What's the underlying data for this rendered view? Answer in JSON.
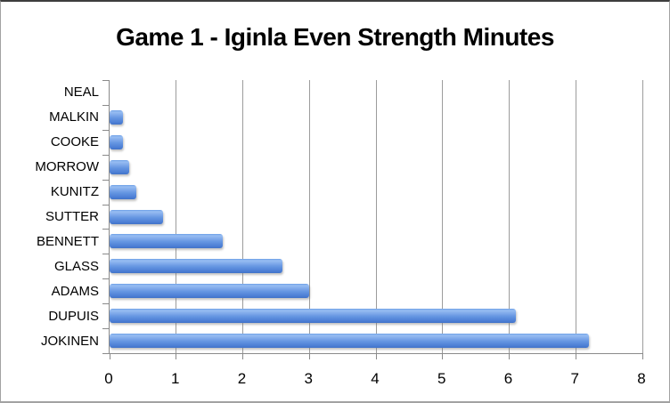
{
  "chart_data": {
    "type": "bar",
    "orientation": "horizontal",
    "title": "Game 1 - Iginla Even Strength Minutes",
    "categories": [
      "NEAL",
      "MALKIN",
      "COOKE",
      "MORROW",
      "KUNITZ",
      "SUTTER",
      "BENNETT",
      "GLASS",
      "ADAMS",
      "DUPUIS",
      "JOKINEN"
    ],
    "values": [
      0,
      0.2,
      0.2,
      0.3,
      0.4,
      0.8,
      1.7,
      2.6,
      3.0,
      6.1,
      7.2
    ],
    "series_name": "Iginla Even Strength Minutes",
    "xlabel": "",
    "ylabel": "",
    "xlim": [
      0,
      8
    ],
    "x_ticks": [
      0,
      1,
      2,
      3,
      4,
      5,
      6,
      7,
      8
    ],
    "grid": "vertical-only",
    "legend": "none",
    "bar_color": "#5b8dd9",
    "gridline_color": "#9c9c9c",
    "axis_color": "#8a8a8a",
    "title_color": "#000000",
    "background_color": "#ffffff"
  }
}
